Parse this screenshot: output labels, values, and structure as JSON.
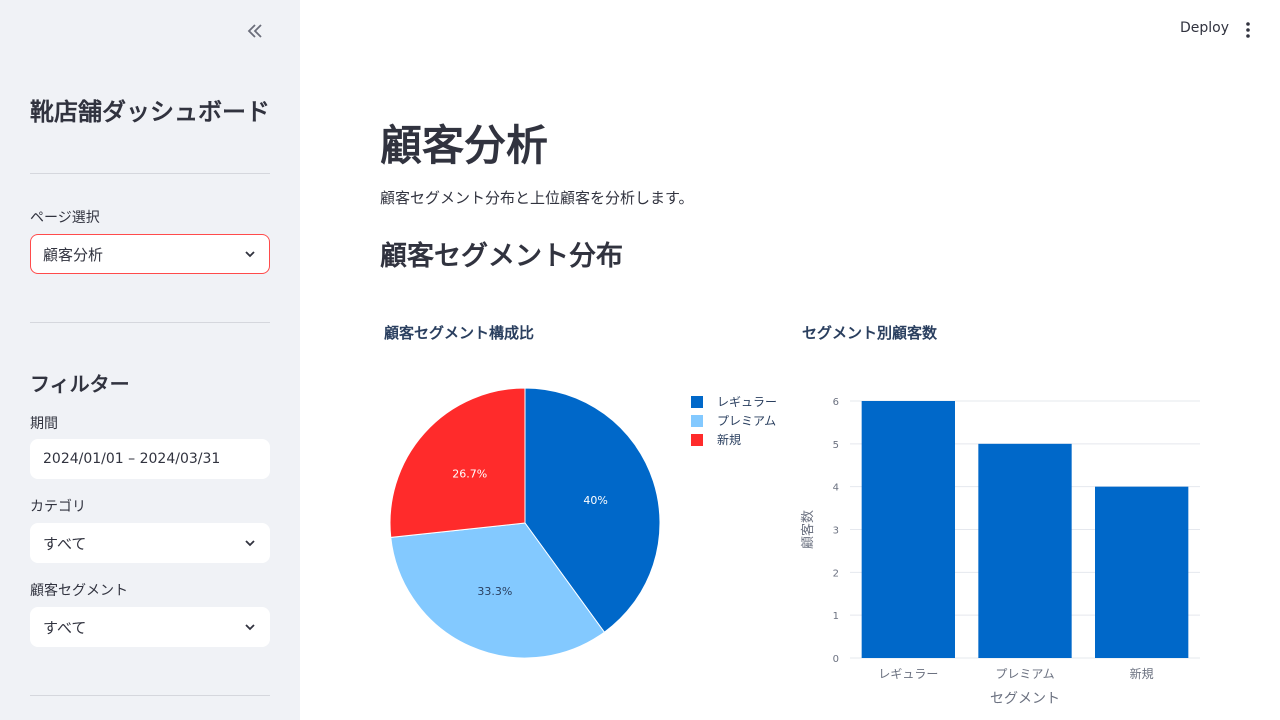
{
  "sidebar": {
    "title": "靴店舗ダッシュボード",
    "page_select": {
      "label": "ページ選択",
      "value": "顧客分析"
    },
    "filter_heading": "フィルター",
    "period": {
      "label": "期間",
      "value": "2024/01/01 – 2024/03/31"
    },
    "category": {
      "label": "カテゴリ",
      "value": "すべて"
    },
    "segment": {
      "label": "顧客セグメント",
      "value": "すべて"
    }
  },
  "topbar": {
    "deploy_label": "Deploy"
  },
  "main": {
    "title": "顧客分析",
    "description": "顧客セグメント分布と上位顧客を分析します。",
    "section_title": "顧客セグメント分布"
  },
  "colors": {
    "regular": "#0068c9",
    "premium": "#83c9ff",
    "new": "#ff2b2b"
  },
  "chart_data": [
    {
      "type": "pie",
      "title": "顧客セグメント構成比",
      "labels": [
        "レギュラー",
        "プレミアム",
        "新規"
      ],
      "values": [
        40,
        33.3,
        26.7
      ],
      "value_labels": [
        "40%",
        "33.3%",
        "26.7%"
      ],
      "legend": "top-right"
    },
    {
      "type": "bar",
      "title": "セグメント別顧客数",
      "categories": [
        "レギュラー",
        "プレミアム",
        "新規"
      ],
      "values": [
        6,
        5,
        4
      ],
      "xlabel": "セグメント",
      "ylabel": "顧客数",
      "ylim": [
        0,
        6
      ],
      "yticks": [
        "0",
        "1",
        "2",
        "3",
        "4",
        "5",
        "6"
      ],
      "grid": true
    }
  ]
}
